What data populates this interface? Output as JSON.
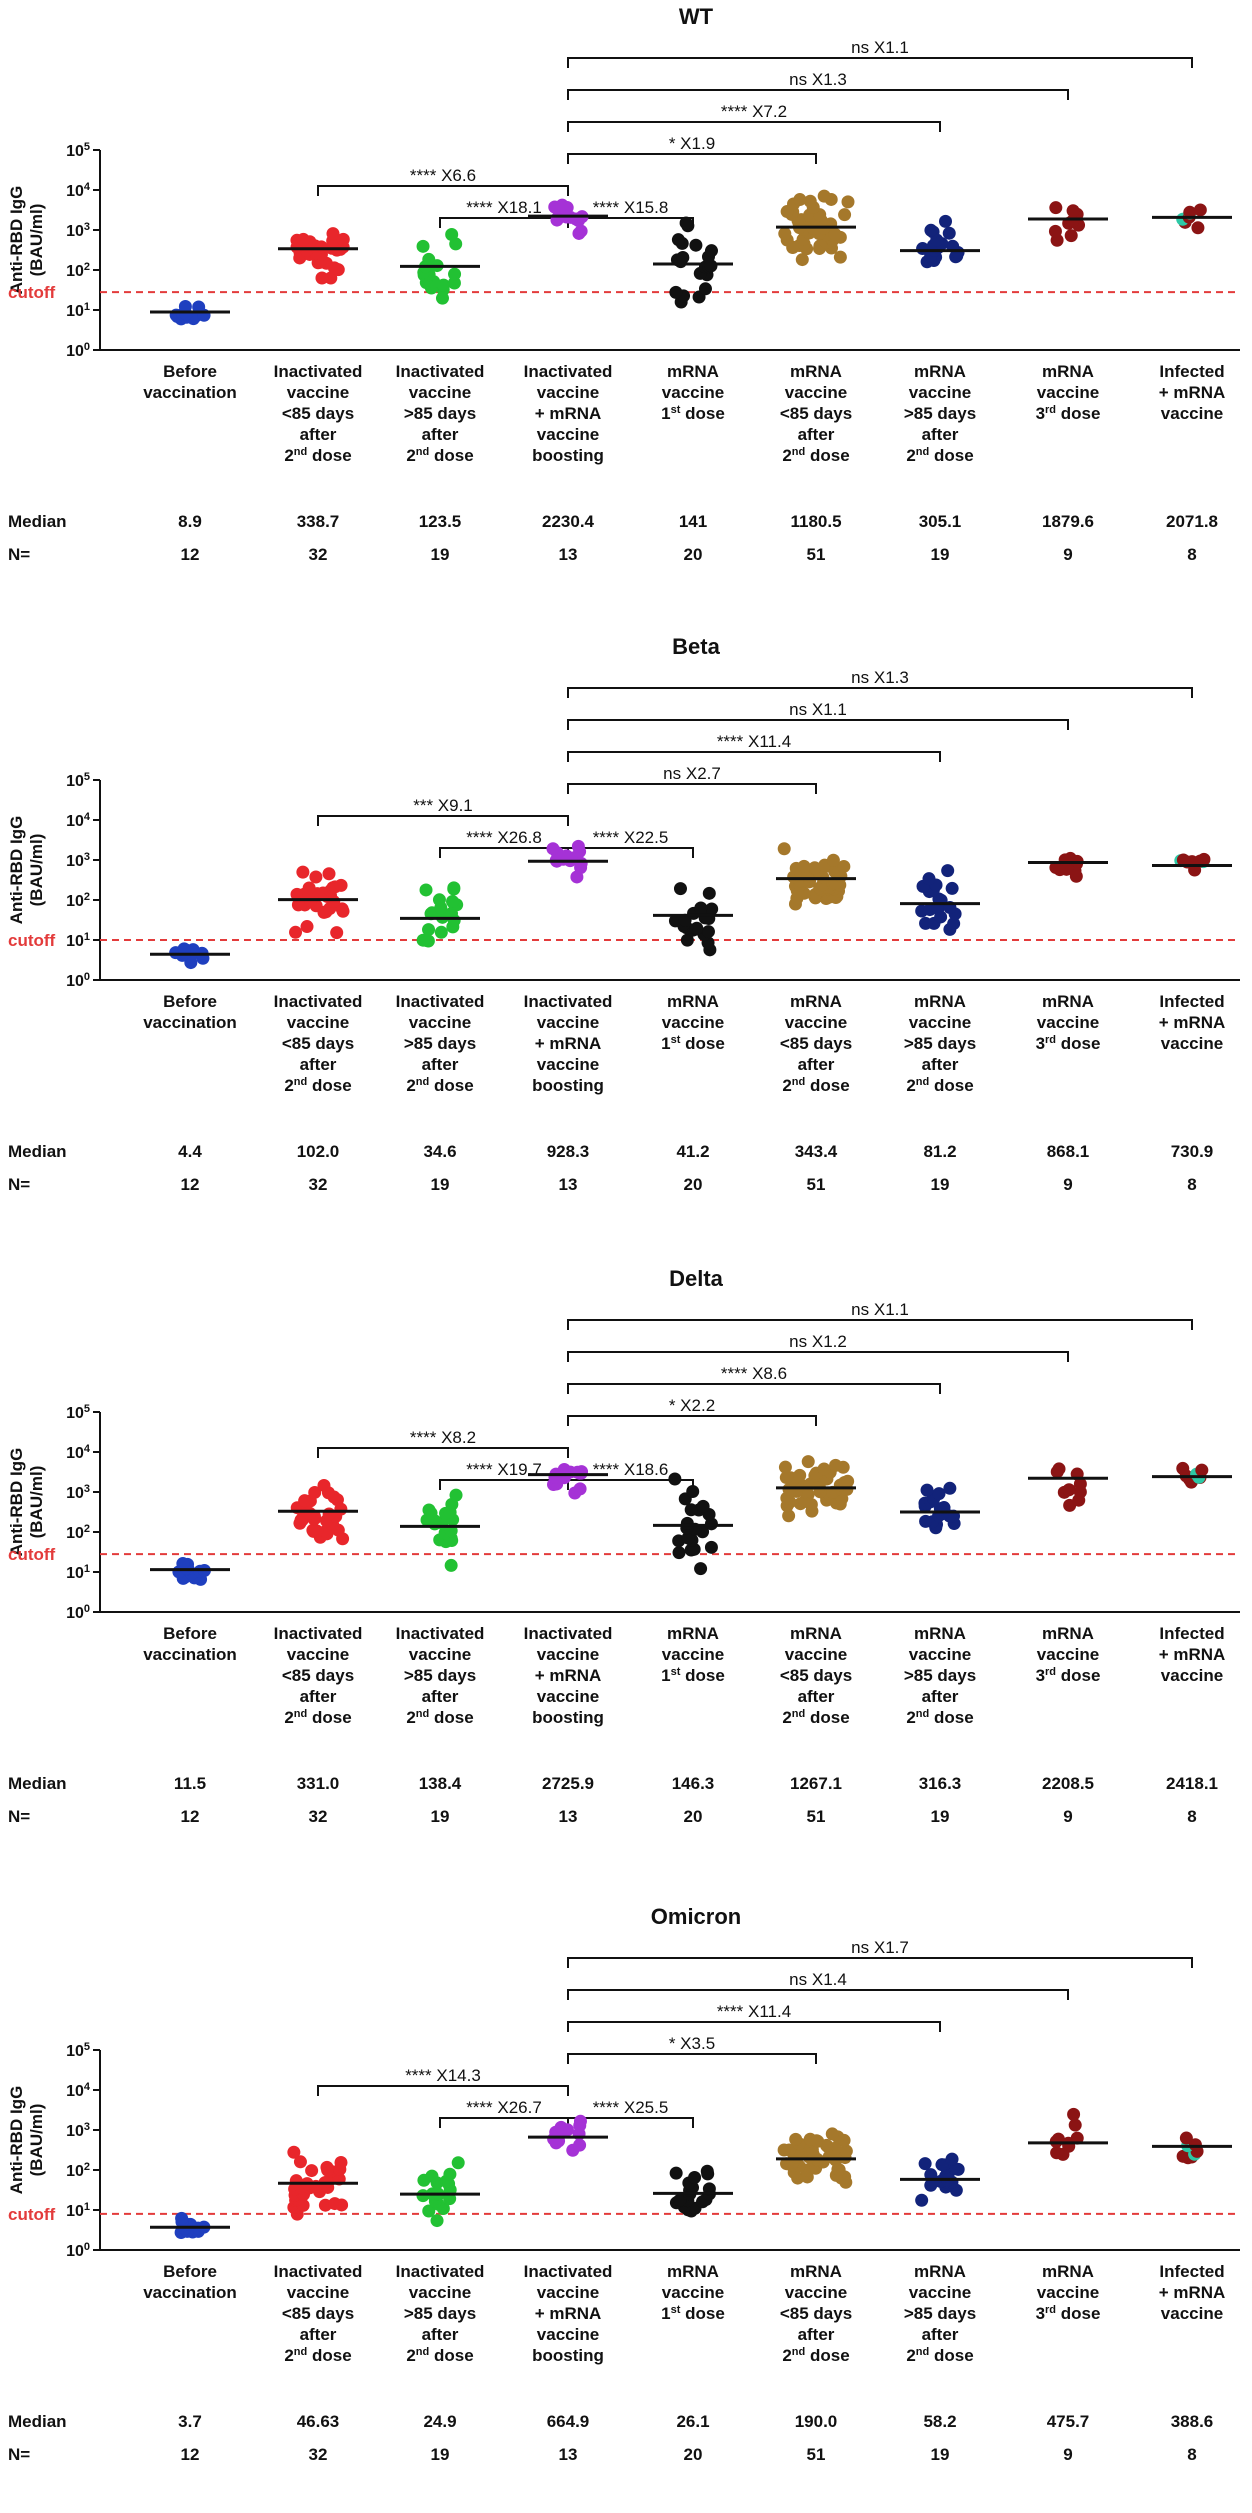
{
  "figure": {
    "ylabel_lines": [
      "Anti-RBD IgG",
      "(BAU/ml)"
    ],
    "cutoff_label": "cutoff",
    "median_label": "Median",
    "n_label": "N=",
    "groups": [
      {
        "lines": [
          "Before",
          "vaccination"
        ]
      },
      {
        "lines": [
          "Inactivated",
          "vaccine",
          "<85 days",
          "after",
          "2^nd dose"
        ]
      },
      {
        "lines": [
          "Inactivated",
          "vaccine",
          ">85 days",
          "after",
          "2^nd dose"
        ]
      },
      {
        "lines": [
          "Inactivated",
          "vaccine",
          "+ mRNA",
          "vaccine",
          "boosting"
        ]
      },
      {
        "lines": [
          "mRNA",
          "vaccine",
          "1^st dose"
        ]
      },
      {
        "lines": [
          "mRNA",
          "vaccine",
          "<85 days",
          "after",
          "2^nd dose"
        ]
      },
      {
        "lines": [
          "mRNA",
          "vaccine",
          ">85 days",
          "after",
          "2^nd dose"
        ]
      },
      {
        "lines": [
          "mRNA",
          "vaccine",
          "3^rd dose"
        ]
      },
      {
        "lines": [
          "Infected",
          "+ mRNA",
          "vaccine"
        ]
      }
    ],
    "group_colors": [
      "#1f3fbf",
      "#e8262b",
      "#22c133",
      "#a532d6",
      "#111111",
      "#a5782b",
      "#12237a",
      "#8b1414",
      "#8b1414"
    ],
    "infected_highlight_color": "#2dc9a6"
  },
  "chart_data": [
    {
      "type": "scatter",
      "title": "WT",
      "ylabel": "Anti-RBD IgG (BAU/ml)",
      "yscale": "log",
      "ylim": [
        1,
        100000
      ],
      "yticks": [
        "10^0",
        "10^1",
        "10^2",
        "10^3",
        "10^4",
        "10^5"
      ],
      "cutoff": 28,
      "medians_display": [
        "8.9",
        "338.7",
        "123.5",
        "2230.4",
        "141",
        "1180.5",
        "305.1",
        "1879.6",
        "2071.8"
      ],
      "medians": [
        8.9,
        338.7,
        123.5,
        2230.4,
        141,
        1180.5,
        305.1,
        1879.6,
        2071.8
      ],
      "n_display": [
        "12",
        "32",
        "19",
        "13",
        "20",
        "51",
        "19",
        "9",
        "8"
      ],
      "n": [
        12,
        32,
        19,
        13,
        20,
        51,
        19,
        9,
        8
      ],
      "spread": [
        0.2,
        0.45,
        0.55,
        0.25,
        0.6,
        0.5,
        0.45,
        0.4,
        0.2
      ],
      "comparisons": [
        {
          "from": 3,
          "to": 8,
          "sig": "ns",
          "fold": "X1.1"
        },
        {
          "from": 3,
          "to": 7,
          "sig": "ns",
          "fold": "X1.3"
        },
        {
          "from": 3,
          "to": 6,
          "sig": "****",
          "fold": "X7.2"
        },
        {
          "from": 3,
          "to": 5,
          "sig": "*",
          "fold": "X1.9"
        },
        {
          "from": 1,
          "to": 3,
          "sig": "****",
          "fold": "X6.6"
        },
        {
          "from": 2,
          "to": 3,
          "sig": "****",
          "fold": "X18.1"
        },
        {
          "from": 3,
          "to": 4,
          "sig": "****",
          "fold": "X15.8"
        }
      ]
    },
    {
      "type": "scatter",
      "title": "Beta",
      "ylabel": "Anti-RBD IgG (BAU/ml)",
      "yscale": "log",
      "ylim": [
        1,
        100000
      ],
      "yticks": [
        "10^0",
        "10^1",
        "10^2",
        "10^3",
        "10^4",
        "10^5"
      ],
      "cutoff": 10,
      "medians_display": [
        "4.4",
        "102.0",
        "34.6",
        "928.3",
        "41.2",
        "343.4",
        "81.2",
        "868.1",
        "730.9"
      ],
      "medians": [
        4.4,
        102.0,
        34.6,
        928.3,
        41.2,
        343.4,
        81.2,
        868.1,
        730.9
      ],
      "n_display": [
        "12",
        "32",
        "19",
        "13",
        "20",
        "51",
        "19",
        "9",
        "8"
      ],
      "n": [
        12,
        32,
        19,
        13,
        20,
        51,
        19,
        9,
        8
      ],
      "spread": [
        0.2,
        0.45,
        0.55,
        0.3,
        0.55,
        0.5,
        0.45,
        0.35,
        0.2
      ],
      "comparisons": [
        {
          "from": 3,
          "to": 8,
          "sig": "ns",
          "fold": "X1.3"
        },
        {
          "from": 3,
          "to": 7,
          "sig": "ns",
          "fold": "X1.1"
        },
        {
          "from": 3,
          "to": 6,
          "sig": "****",
          "fold": "X11.4"
        },
        {
          "from": 3,
          "to": 5,
          "sig": "ns",
          "fold": "X2.7"
        },
        {
          "from": 1,
          "to": 3,
          "sig": "***",
          "fold": "X9.1"
        },
        {
          "from": 2,
          "to": 3,
          "sig": "****",
          "fold": "X26.8"
        },
        {
          "from": 3,
          "to": 4,
          "sig": "****",
          "fold": "X22.5"
        }
      ]
    },
    {
      "type": "scatter",
      "title": "Delta",
      "ylabel": "Anti-RBD IgG (BAU/ml)",
      "yscale": "log",
      "ylim": [
        1,
        100000
      ],
      "yticks": [
        "10^0",
        "10^1",
        "10^2",
        "10^3",
        "10^4",
        "10^5"
      ],
      "cutoff": 28,
      "medians_display": [
        "11.5",
        "331.0",
        "138.4",
        "2725.9",
        "146.3",
        "1267.1",
        "316.3",
        "2208.5",
        "2418.1"
      ],
      "medians": [
        11.5,
        331.0,
        138.4,
        2725.9,
        146.3,
        1267.1,
        316.3,
        2208.5,
        2418.1
      ],
      "n_display": [
        "12",
        "32",
        "19",
        "13",
        "20",
        "51",
        "19",
        "9",
        "8"
      ],
      "n": [
        12,
        32,
        19,
        13,
        20,
        51,
        19,
        9,
        8
      ],
      "spread": [
        0.2,
        0.45,
        0.55,
        0.25,
        0.6,
        0.45,
        0.4,
        0.4,
        0.2
      ],
      "comparisons": [
        {
          "from": 3,
          "to": 8,
          "sig": "ns",
          "fold": "X1.1"
        },
        {
          "from": 3,
          "to": 7,
          "sig": "ns",
          "fold": "X1.2"
        },
        {
          "from": 3,
          "to": 6,
          "sig": "****",
          "fold": "X8.6"
        },
        {
          "from": 3,
          "to": 5,
          "sig": "*",
          "fold": "X2.2"
        },
        {
          "from": 1,
          "to": 3,
          "sig": "****",
          "fold": "X8.2"
        },
        {
          "from": 2,
          "to": 3,
          "sig": "****",
          "fold": "X19.7"
        },
        {
          "from": 3,
          "to": 4,
          "sig": "****",
          "fold": "X18.6"
        }
      ]
    },
    {
      "type": "scatter",
      "title": "Omicron",
      "ylabel": "Anti-RBD IgG (BAU/ml)",
      "yscale": "log",
      "ylim": [
        1,
        100000
      ],
      "yticks": [
        "10^0",
        "10^1",
        "10^2",
        "10^3",
        "10^4",
        "10^5"
      ],
      "cutoff": 8,
      "medians_display": [
        "3.7",
        "46.63",
        "24.9",
        "664.9",
        "26.1",
        "190.0",
        "58.2",
        "475.7",
        "388.6"
      ],
      "medians": [
        3.7,
        46.63,
        24.9,
        664.9,
        26.1,
        190.0,
        58.2,
        475.7,
        388.6
      ],
      "n_display": [
        "12",
        "32",
        "19",
        "13",
        "20",
        "51",
        "19",
        "9",
        "8"
      ],
      "n": [
        12,
        32,
        19,
        13,
        20,
        51,
        19,
        9,
        8
      ],
      "spread": [
        0.2,
        0.45,
        0.5,
        0.3,
        0.45,
        0.45,
        0.4,
        0.35,
        0.2
      ],
      "comparisons": [
        {
          "from": 3,
          "to": 8,
          "sig": "ns",
          "fold": "X1.7"
        },
        {
          "from": 3,
          "to": 7,
          "sig": "ns",
          "fold": "X1.4"
        },
        {
          "from": 3,
          "to": 6,
          "sig": "****",
          "fold": "X11.4"
        },
        {
          "from": 3,
          "to": 5,
          "sig": "*",
          "fold": "X3.5"
        },
        {
          "from": 1,
          "to": 3,
          "sig": "****",
          "fold": "X14.3"
        },
        {
          "from": 2,
          "to": 3,
          "sig": "****",
          "fold": "X26.7"
        },
        {
          "from": 3,
          "to": 4,
          "sig": "****",
          "fold": "X25.5"
        }
      ]
    }
  ]
}
